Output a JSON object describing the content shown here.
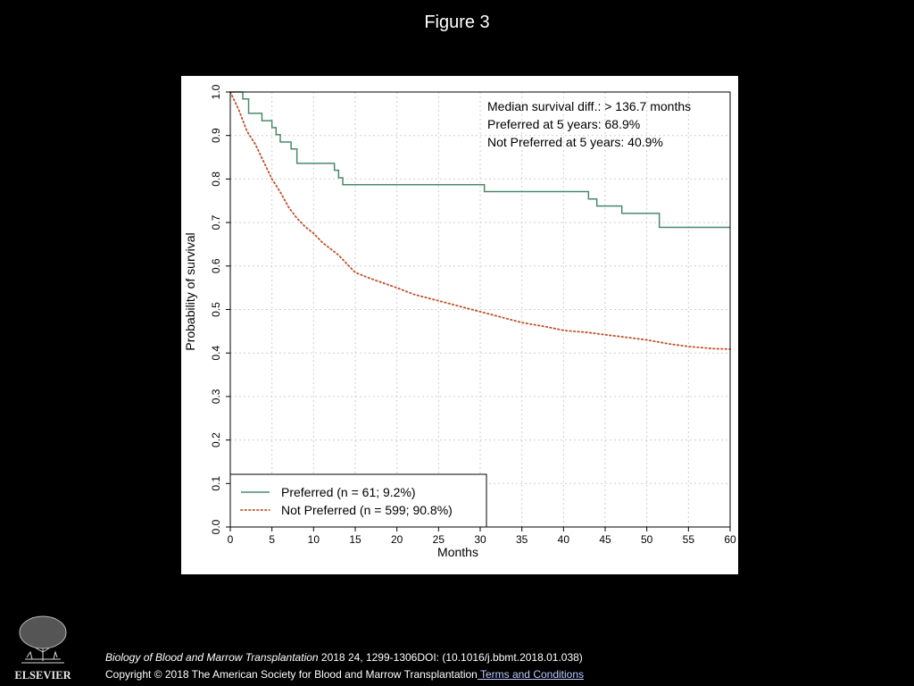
{
  "slide": {
    "title": "Figure 3",
    "citation_journal": "Biology of Blood and Marrow Transplantation",
    "citation_rest": " 2018 24, 1299-1306DOI: (10.1016/j.bbmt.2018.01.038)",
    "copyright": "Copyright © 2018 The American Society for Blood and Marrow Transplantation",
    "terms_link": " Terms and Conditions",
    "publisher_logo_text": "ELSEVIER"
  },
  "chart_data": {
    "type": "line",
    "xlabel": "Months",
    "ylabel": "Probability of survival",
    "xlim": [
      0,
      60
    ],
    "ylim": [
      0,
      1.0
    ],
    "x_ticks": [
      0,
      5,
      10,
      15,
      20,
      25,
      30,
      35,
      40,
      45,
      50,
      55,
      60
    ],
    "y_ticks": [
      "0.0",
      "0.1",
      "0.2",
      "0.3",
      "0.4",
      "0.5",
      "0.6",
      "0.7",
      "0.8",
      "0.9",
      "1.0"
    ],
    "grid": true,
    "annotations": [
      "Median survival diff.: > 136.7 months",
      "Preferred at 5 years: 68.9%",
      "Not Preferred at 5 years: 40.9%"
    ],
    "legend_position": "bottom-left",
    "series": [
      {
        "name": "Preferred (n = 61; 9.2%)",
        "color": "#4a8a6a",
        "style": "step-solid",
        "x": [
          0,
          1.5,
          2.2,
          3.8,
          5.0,
          5.5,
          6.0,
          7.3,
          8.0,
          12.5,
          13.0,
          13.5,
          30.5,
          43.0,
          44.0,
          47.0,
          51.5
        ],
        "y": [
          1.0,
          0.984,
          0.951,
          0.934,
          0.918,
          0.902,
          0.885,
          0.869,
          0.836,
          0.82,
          0.803,
          0.787,
          0.771,
          0.754,
          0.738,
          0.721,
          0.689
        ]
      },
      {
        "name": "Not Preferred (n = 599; 90.8%)",
        "color": "#c0502a",
        "style": "dotted",
        "x": [
          0,
          1,
          2,
          3,
          4,
          5,
          6,
          7,
          8,
          9,
          10,
          11,
          12,
          13,
          14,
          15,
          17,
          20,
          22,
          25,
          28,
          30,
          33,
          35,
          38,
          40,
          43,
          45,
          48,
          50,
          53,
          55,
          58,
          60
        ],
        "y": [
          1.0,
          0.96,
          0.91,
          0.88,
          0.84,
          0.8,
          0.77,
          0.735,
          0.71,
          0.69,
          0.675,
          0.655,
          0.64,
          0.625,
          0.605,
          0.585,
          0.57,
          0.55,
          0.535,
          0.52,
          0.505,
          0.495,
          0.48,
          0.47,
          0.46,
          0.452,
          0.447,
          0.442,
          0.435,
          0.43,
          0.42,
          0.415,
          0.41,
          0.409
        ]
      }
    ]
  }
}
